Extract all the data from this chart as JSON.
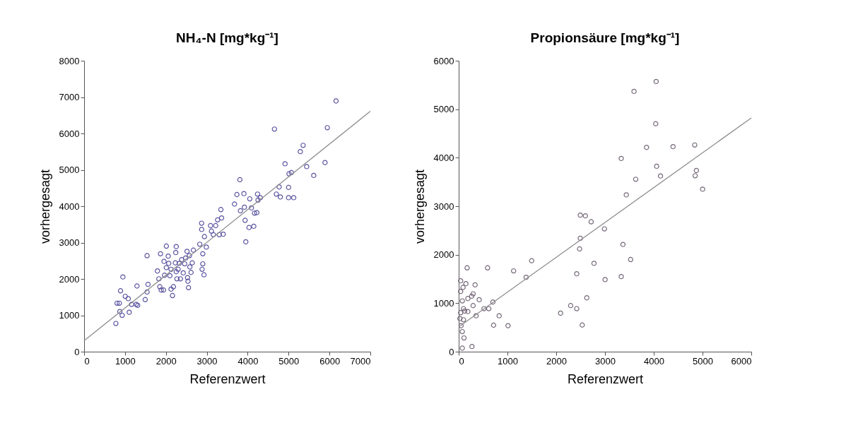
{
  "chart_data": [
    {
      "type": "scatter",
      "title": "NH₄-N [mg*kg⁻¹]",
      "xlabel": "Referenzwert",
      "ylabel": "vorhergesagt",
      "xlim": [
        0,
        7000
      ],
      "ylim": [
        0,
        8000
      ],
      "xticks": [
        0,
        1000,
        2000,
        3000,
        4000,
        5000,
        6000,
        7000
      ],
      "yticks": [
        0,
        1000,
        2000,
        3000,
        4000,
        5000,
        6000,
        7000,
        8000
      ],
      "grid": false,
      "series": [
        {
          "color": "#5b55a0",
          "marker": "circle",
          "x": [
            776,
            805,
            862,
            891,
            948,
            874,
            931,
            1006,
            1080,
            1103,
            1161,
            1276,
            1310,
            1293,
            1494,
            1540,
            1563,
            1540,
            1793,
            1828,
            1851,
            1868,
            1885,
            1943,
            1966,
            1954,
            2011,
            2011,
            2057,
            2069,
            2098,
            2126,
            2126,
            2161,
            2184,
            2230,
            2241,
            2253,
            2253,
            2270,
            2299,
            2328,
            2356,
            2385,
            2425,
            2460,
            2483,
            2517,
            2529,
            2540,
            2552,
            2575,
            2586,
            2615,
            2644,
            2672,
            2828,
            2874,
            2874,
            2902,
            2902,
            2885,
            2931,
            2943,
            2989,
            3092,
            3115,
            3161,
            3218,
            3264,
            3305,
            3345,
            3362,
            3402,
            3678,
            3736,
            3810,
            3822,
            3908,
            3920,
            3937,
            3954,
            4034,
            4052,
            4092,
            4149,
            4167,
            4224,
            4241,
            4253,
            4310,
            4655,
            4701,
            4770,
            4799,
            4914,
            5000,
            5011,
            5000,
            5069,
            5126,
            5287,
            5356,
            5443,
            5615,
            5891,
            5948,
            6161
          ],
          "values": [
            775,
            1333,
            1333,
            1674,
            2055,
            1103,
            998,
            1523,
            1458,
            1083,
            1300,
            1300,
            1274,
            1806,
            1431,
            1641,
            1852,
            2640,
            2219,
            2003,
            1786,
            2692,
            1694,
            1694,
            2101,
            2482,
            2902,
            2311,
            2627,
            2429,
            2088,
            2265,
            1720,
            1543,
            1786,
            2442,
            2725,
            2889,
            2199,
            2003,
            2265,
            2429,
            2003,
            2528,
            2167,
            2416,
            2574,
            2758,
            2035,
            1937,
            1760,
            2640,
            2331,
            2180,
            2442,
            2791,
            2955,
            3532,
            3361,
            2692,
            2416,
            2265,
            2114,
            3164,
            2876,
            3466,
            3315,
            3217,
            3466,
            3624,
            3217,
            3907,
            3677,
            3230,
            4058,
            4320,
            4728,
            3874,
            4346,
            3972,
            3611,
            3020,
            3415,
            4202,
            3953,
            3448,
            3809,
            3822,
            4333,
            4169,
            4235,
            6120,
            4333,
            4530,
            4254,
            5167,
            4517,
            4892,
            4235,
            4925,
            4235,
            5502,
            5673,
            5089,
            4846,
            5200,
            6159,
            6894
          ]
        },
        {
          "type": "line",
          "color": "#8c8c8c",
          "x": [
            0,
            7000
          ],
          "values": [
            300,
            6610
          ]
        }
      ]
    },
    {
      "type": "scatter",
      "title": "Propionsäure [mg*kg⁻¹]",
      "xlabel": "Referenzwert",
      "ylabel": "vorhergesagt",
      "xlim": [
        0,
        6000
      ],
      "ylim": [
        0,
        6000
      ],
      "xticks": [
        0,
        1000,
        2000,
        3000,
        4000,
        5000,
        6000
      ],
      "yticks": [
        0,
        1000,
        2000,
        3000,
        4000,
        5000,
        6000
      ],
      "grid": false,
      "series": [
        {
          "color": "#76697a",
          "marker": "circle",
          "x": [
            74,
            272,
            109,
            74,
            49,
            99,
            25,
            40,
            124,
            188,
            99,
            296,
            356,
            420,
            519,
            617,
            701,
            716,
            830,
            1012,
            74,
            188,
            267,
            296,
            336,
            148,
            89,
            40,
            40,
            173,
            593,
            1126,
            1383,
            1496,
            2089,
            2296,
            2420,
            2533,
            2627,
            2420,
            2479,
            2494,
            2494,
            2598,
            2716,
            2775,
            2988,
            3002,
            3333,
            3368,
            3526,
            3333,
            3437,
            3630,
            3595,
            3852,
            4040,
            4049,
            4059,
            4138,
            4395,
            4840,
            4874,
            4849,
            5002
          ],
          "values": [
            73,
            107,
            283,
            414,
            536,
            658,
            682,
            804,
            838,
            828,
            887,
            950,
            740,
            1072,
            887,
            887,
            1023,
            546,
            740,
            536,
            1047,
            1096,
            1145,
            1193,
            1378,
            1403,
            1325,
            1242,
            1461,
            1729,
            1729,
            1666,
            1534,
            1875,
            794,
            950,
            887,
            550,
            1111,
            1607,
            2119,
            2338,
            2815,
            2801,
            2679,
            1822,
            2533,
            1486,
            1549,
            2211,
            1900,
            3984,
            3234,
            3556,
            5368,
            4213,
            4700,
            5572,
            3824,
            3624,
            4228,
            4262,
            3736,
            3629,
            3351
          ]
        },
        {
          "type": "line",
          "color": "#8c8c8c",
          "x": [
            0,
            6000
          ],
          "values": [
            510,
            4820
          ]
        }
      ]
    }
  ]
}
